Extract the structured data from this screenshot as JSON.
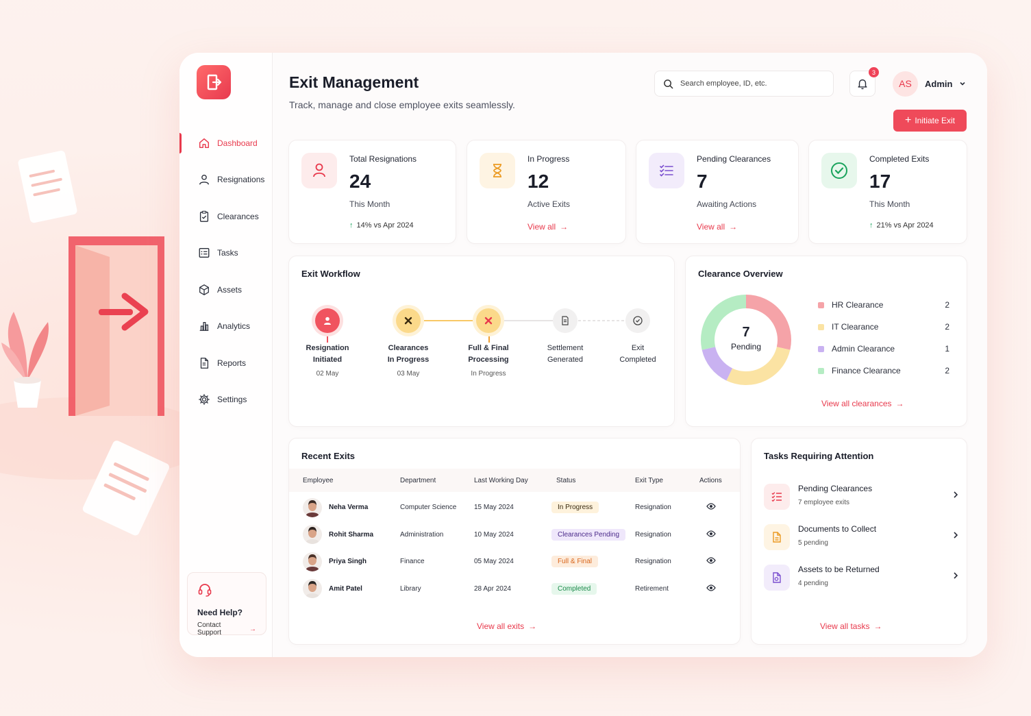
{
  "app": {
    "title": "Exit Management",
    "subtitle": "Track, manage and close employee exits seamlessly."
  },
  "sidebar": {
    "items": [
      {
        "label": "Dashboard",
        "icon": "home-icon",
        "active": true
      },
      {
        "label": "Resignations",
        "icon": "user-icon"
      },
      {
        "label": "Clearances",
        "icon": "clipboard-check-icon"
      },
      {
        "label": "Tasks",
        "icon": "tasks-icon"
      },
      {
        "label": "Assets",
        "icon": "box-icon"
      },
      {
        "label": "Analytics",
        "icon": "bar-chart-icon"
      },
      {
        "label": "Reports",
        "icon": "document-icon"
      },
      {
        "label": "Settings",
        "icon": "gear-icon"
      }
    ],
    "help": {
      "title": "Need Help?",
      "link": "Contact Support"
    }
  },
  "header": {
    "search_placeholder": "Search employee, ID, etc.",
    "notifications": "3",
    "avatar_initials": "AS",
    "user_name": "Admin",
    "initiate_label": "Initiate Exit"
  },
  "stats": [
    {
      "label": "Total Resignations",
      "value": "24",
      "sub": "This Month",
      "trend": "14% vs Apr 2024"
    },
    {
      "label": "In Progress",
      "value": "12",
      "sub": "Active Exits",
      "link": "View all"
    },
    {
      "label": "Pending Clearances",
      "value": "7",
      "sub": "Awaiting Actions",
      "link": "View all"
    },
    {
      "label": "Completed Exits",
      "value": "17",
      "sub": "This Month",
      "trend": "21% vs Apr 2024"
    }
  ],
  "workflow": {
    "title": "Exit Workflow",
    "steps": [
      {
        "line1": "Resignation",
        "line2": "Initiated",
        "date": "02 May"
      },
      {
        "line1": "Clearances",
        "line2": "In Progress",
        "date": "03 May"
      },
      {
        "line1": "Full & Final",
        "line2": "Processing",
        "date": "In Progress"
      },
      {
        "line1": "Settlement",
        "line2": "Generated",
        "date": ""
      },
      {
        "line1": "Exit",
        "line2": "Completed",
        "date": ""
      }
    ]
  },
  "clearance": {
    "title": "Clearance Overview",
    "center_value": "7",
    "center_label": "Pending",
    "items": [
      {
        "label": "HR Clearance",
        "count": "2",
        "color": "#f5a3a8"
      },
      {
        "label": "IT Clearance",
        "count": "2",
        "color": "#fbe3a3"
      },
      {
        "label": "Admin Clearance",
        "count": "1",
        "color": "#c9b2f1"
      },
      {
        "label": "Finance Clearance",
        "count": "2",
        "color": "#b5ecc3"
      }
    ],
    "link": "View all clearances"
  },
  "recent": {
    "title": "Recent Exits",
    "columns": [
      "Employee",
      "Department",
      "Last Working Day",
      "Status",
      "Exit Type",
      "Actions"
    ],
    "rows": [
      {
        "name": "Neha Verma",
        "dept": "Computer Science",
        "day": "15 May 2024",
        "status": "In Progress",
        "type": "Resignation"
      },
      {
        "name": "Rohit Sharma",
        "dept": "Administration",
        "day": "10 May 2024",
        "status": "Clearances Pending",
        "type": "Resignation"
      },
      {
        "name": "Priya Singh",
        "dept": "Finance",
        "day": "05 May 2024",
        "status": "Full & Final",
        "type": "Resignation"
      },
      {
        "name": "Amit Patel",
        "dept": "Library",
        "day": "28 Apr 2024",
        "status": "Completed",
        "type": "Retirement"
      }
    ],
    "link": "View all exits"
  },
  "tasks": {
    "title": "Tasks Requiring Attention",
    "items": [
      {
        "title": "Pending Clearances",
        "sub": "7 employee exits"
      },
      {
        "title": "Documents to Collect",
        "sub": "5 pending"
      },
      {
        "title": "Assets to be Returned",
        "sub": "4 pending"
      }
    ],
    "link": "View all tasks"
  }
}
